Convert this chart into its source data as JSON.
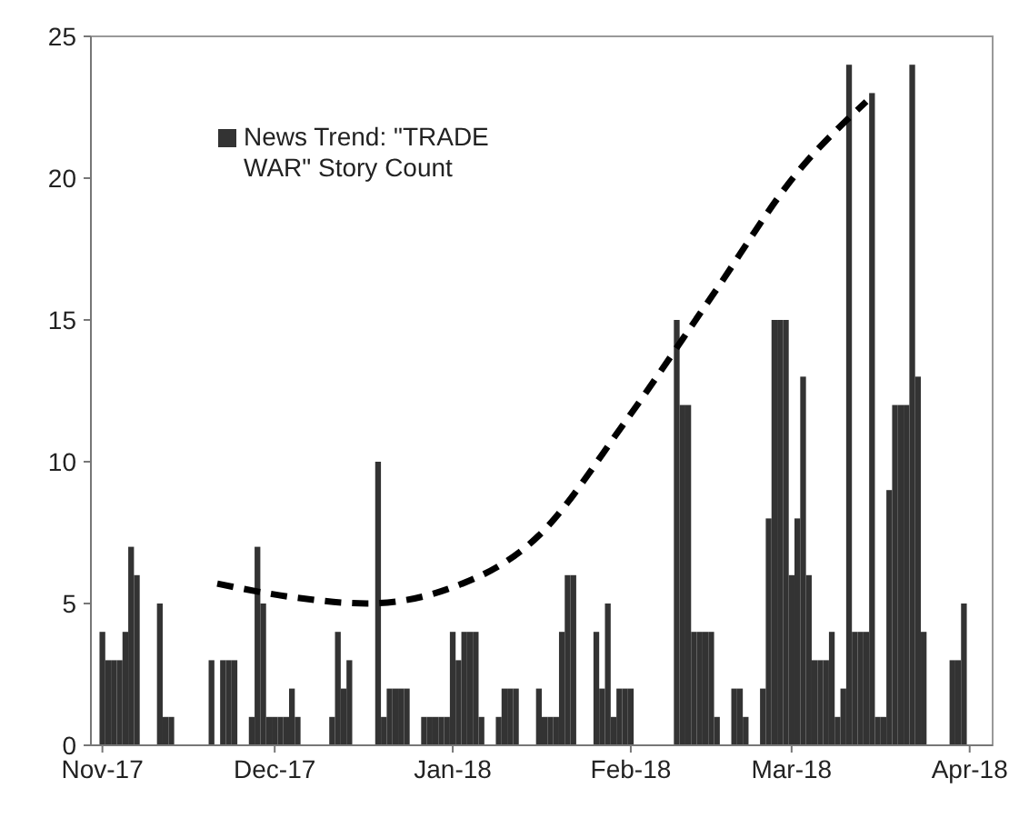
{
  "chart_data": {
    "type": "bar",
    "xlim": [
      "2017-10-30",
      "2018-04-05"
    ],
    "xticks": [
      {
        "value": "2017-11-01",
        "label": "Nov-17"
      },
      {
        "value": "2017-12-01",
        "label": "Dec-17"
      },
      {
        "value": "2018-01-01",
        "label": "Jan-18"
      },
      {
        "value": "2018-02-01",
        "label": "Feb-18"
      },
      {
        "value": "2018-03-01",
        "label": "Mar-18"
      },
      {
        "value": "2018-04-01",
        "label": "Apr-18"
      }
    ],
    "ylim": [
      0,
      25
    ],
    "yticks": [
      0,
      5,
      10,
      15,
      20,
      25
    ],
    "legend": "top left",
    "series": [
      {
        "name": "News Trend: \"TRADE WAR\" Story Count",
        "color": "#333333",
        "x": [
          "2017-11-01",
          "2017-11-02",
          "2017-11-03",
          "2017-11-04",
          "2017-11-05",
          "2017-11-06",
          "2017-11-07",
          "2017-11-11",
          "2017-11-12",
          "2017-11-13",
          "2017-11-20",
          "2017-11-22",
          "2017-11-23",
          "2017-11-24",
          "2017-11-27",
          "2017-11-28",
          "2017-11-29",
          "2017-11-30",
          "2017-12-01",
          "2017-12-02",
          "2017-12-03",
          "2017-12-04",
          "2017-12-05",
          "2017-12-11",
          "2017-12-12",
          "2017-12-13",
          "2017-12-14",
          "2017-12-19",
          "2017-12-20",
          "2017-12-21",
          "2017-12-22",
          "2017-12-23",
          "2017-12-24",
          "2017-12-27",
          "2017-12-28",
          "2017-12-29",
          "2017-12-30",
          "2017-12-31",
          "2018-01-01",
          "2018-01-02",
          "2018-01-03",
          "2018-01-04",
          "2018-01-05",
          "2018-01-06",
          "2018-01-09",
          "2018-01-10",
          "2018-01-11",
          "2018-01-12",
          "2018-01-16",
          "2018-01-17",
          "2018-01-18",
          "2018-01-19",
          "2018-01-20",
          "2018-01-21",
          "2018-01-22",
          "2018-01-26",
          "2018-01-27",
          "2018-01-28",
          "2018-01-29",
          "2018-01-30",
          "2018-01-31",
          "2018-02-01",
          "2018-02-09",
          "2018-02-10",
          "2018-02-11",
          "2018-02-12",
          "2018-02-13",
          "2018-02-14",
          "2018-02-15",
          "2018-02-16",
          "2018-02-19",
          "2018-02-20",
          "2018-02-21",
          "2018-02-24",
          "2018-02-25",
          "2018-02-26",
          "2018-02-27",
          "2018-02-28",
          "2018-03-01",
          "2018-03-02",
          "2018-03-03",
          "2018-03-04",
          "2018-03-05",
          "2018-03-06",
          "2018-03-07",
          "2018-03-08",
          "2018-03-09",
          "2018-03-10",
          "2018-03-11",
          "2018-03-12",
          "2018-03-13",
          "2018-03-14",
          "2018-03-15",
          "2018-03-16",
          "2018-03-17",
          "2018-03-18",
          "2018-03-19",
          "2018-03-20",
          "2018-03-21",
          "2018-03-22",
          "2018-03-23",
          "2018-03-24",
          "2018-03-29",
          "2018-03-30",
          "2018-03-31"
        ],
        "values": [
          4,
          3,
          3,
          3,
          4,
          7,
          6,
          5,
          1,
          1,
          3,
          3,
          3,
          3,
          1,
          7,
          5,
          1,
          1,
          1,
          1,
          2,
          1,
          1,
          4,
          2,
          3,
          10,
          1,
          2,
          2,
          2,
          2,
          1,
          1,
          1,
          1,
          1,
          4,
          3,
          4,
          4,
          4,
          1,
          1,
          2,
          2,
          2,
          2,
          1,
          1,
          1,
          4,
          6,
          6,
          4,
          2,
          5,
          1,
          2,
          2,
          2,
          15,
          12,
          12,
          4,
          4,
          4,
          4,
          1,
          2,
          2,
          1,
          2,
          8,
          15,
          15,
          15,
          6,
          8,
          13,
          6,
          3,
          3,
          3,
          4,
          1,
          2,
          24,
          4,
          4,
          4,
          23,
          1,
          1,
          9,
          12,
          12,
          12,
          24,
          13,
          4,
          3,
          3,
          5
        ]
      },
      {
        "type": "line",
        "color": "#000000",
        "line_style": "dashed",
        "x": [
          "2017-11-21",
          "2017-12-05",
          "2017-12-17",
          "2017-12-31",
          "2018-01-16",
          "2018-01-31",
          "2018-02-15",
          "2018-03-02",
          "2018-03-14"
        ],
        "values": [
          5.7,
          5.2,
          5.0,
          5.5,
          7.4,
          11.4,
          15.8,
          20.2,
          22.7
        ]
      }
    ]
  }
}
